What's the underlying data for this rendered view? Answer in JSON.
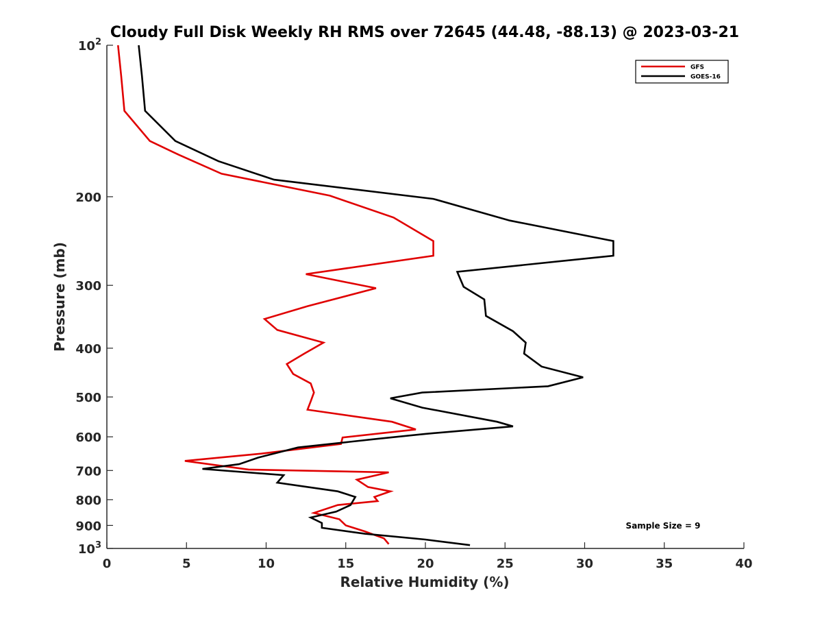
{
  "chart_data": {
    "type": "line",
    "title": "Cloudy Full Disk Weekly RH RMS over 72645 (44.48, -88.13) @ 2023-03-21",
    "xlabel": "Relative Humidity (%)",
    "ylabel": "Pressure (mb)",
    "xlim": [
      0,
      40
    ],
    "ylim": [
      100,
      1000
    ],
    "yscale": "log",
    "y_reversed": true,
    "grid": false,
    "legend_position": "top-right",
    "x_ticks": [
      "0",
      "5",
      "10",
      "15",
      "20",
      "25",
      "30",
      "35",
      "40"
    ],
    "y_ticks": [
      {
        "value": 100,
        "base": "10",
        "exp": "2"
      },
      {
        "value": 200,
        "label": "200"
      },
      {
        "value": 300,
        "label": "300"
      },
      {
        "value": 400,
        "label": "400"
      },
      {
        "value": 500,
        "label": "500"
      },
      {
        "value": 600,
        "label": "600"
      },
      {
        "value": 700,
        "label": "700"
      },
      {
        "value": 800,
        "label": "800"
      },
      {
        "value": 900,
        "label": "900"
      },
      {
        "value": 1000,
        "base": "10",
        "exp": "3"
      }
    ],
    "annotation": "Sample Size = 9",
    "series": [
      {
        "name": "GFS",
        "color": "#e00000",
        "points": [
          [
            0.7,
            100
          ],
          [
            0.9,
            115
          ],
          [
            1.1,
            135
          ],
          [
            2.7,
            155
          ],
          [
            4.5,
            165
          ],
          [
            7.2,
            180
          ],
          [
            14.0,
            199
          ],
          [
            18.0,
            220
          ],
          [
            20.5,
            245
          ],
          [
            20.5,
            262
          ],
          [
            12.5,
            285
          ],
          [
            16.9,
            304
          ],
          [
            12.6,
            330
          ],
          [
            9.9,
            350
          ],
          [
            10.7,
            368
          ],
          [
            13.6,
            390
          ],
          [
            12.4,
            410
          ],
          [
            11.3,
            430
          ],
          [
            11.7,
            450
          ],
          [
            12.8,
            470
          ],
          [
            13.0,
            490
          ],
          [
            12.8,
            510
          ],
          [
            12.6,
            530
          ],
          [
            17.9,
            560
          ],
          [
            19.4,
            580
          ],
          [
            14.8,
            602
          ],
          [
            14.7,
            620
          ],
          [
            9.7,
            648
          ],
          [
            4.9,
            670
          ],
          [
            8.9,
            697
          ],
          [
            17.7,
            706
          ],
          [
            15.7,
            730
          ],
          [
            16.4,
            755
          ],
          [
            17.8,
            770
          ],
          [
            16.8,
            790
          ],
          [
            17.0,
            805
          ],
          [
            14.5,
            820
          ],
          [
            13.0,
            850
          ],
          [
            14.6,
            875
          ],
          [
            15.0,
            900
          ],
          [
            16.2,
            925
          ],
          [
            17.4,
            955
          ],
          [
            17.7,
            980
          ]
        ]
      },
      {
        "name": "GOES-16",
        "color": "#000000",
        "points": [
          [
            2.0,
            100
          ],
          [
            2.2,
            115
          ],
          [
            2.4,
            135
          ],
          [
            4.3,
            155
          ],
          [
            7.0,
            170
          ],
          [
            10.5,
            185
          ],
          [
            20.5,
            202
          ],
          [
            25.3,
            223
          ],
          [
            31.8,
            245
          ],
          [
            31.8,
            262
          ],
          [
            22.0,
            282
          ],
          [
            22.4,
            302
          ],
          [
            23.7,
            320
          ],
          [
            23.8,
            345
          ],
          [
            25.5,
            370
          ],
          [
            26.3,
            390
          ],
          [
            26.2,
            410
          ],
          [
            27.3,
            435
          ],
          [
            29.9,
            457
          ],
          [
            27.7,
            476
          ],
          [
            19.8,
            490
          ],
          [
            17.8,
            503
          ],
          [
            19.8,
            525
          ],
          [
            24.5,
            560
          ],
          [
            25.5,
            572
          ],
          [
            20.0,
            592
          ],
          [
            16.9,
            606
          ],
          [
            12.0,
            630
          ],
          [
            9.5,
            660
          ],
          [
            8.3,
            680
          ],
          [
            6.0,
            695
          ],
          [
            11.1,
            715
          ],
          [
            10.7,
            740
          ],
          [
            14.5,
            770
          ],
          [
            15.6,
            790
          ],
          [
            15.3,
            820
          ],
          [
            14.4,
            845
          ],
          [
            12.8,
            868
          ],
          [
            13.5,
            890
          ],
          [
            13.5,
            910
          ],
          [
            16.2,
            935
          ],
          [
            20.0,
            960
          ],
          [
            22.8,
            985
          ]
        ]
      }
    ]
  }
}
